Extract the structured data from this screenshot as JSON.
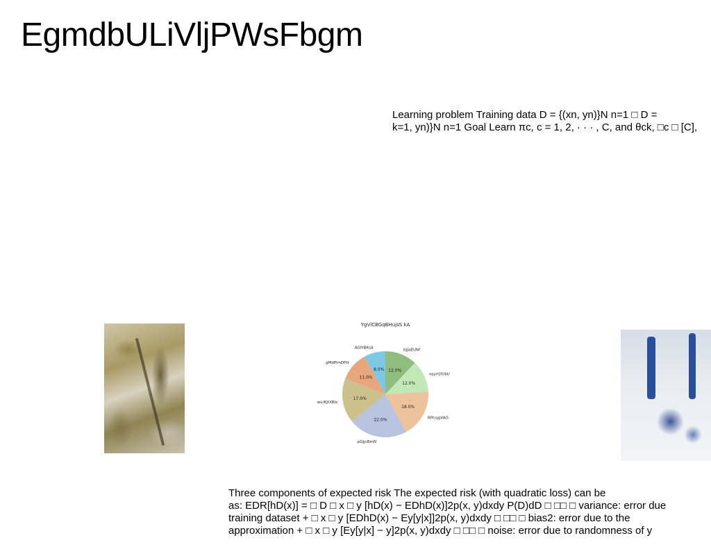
{
  "page": {
    "title": "EgmdbULiVljPWsFbgm"
  },
  "block1": {
    "lines": [
      "Learning problem Training data D = {(xn, yn)}N n=1 □ D =",
      "k=1, yn)}N n=1 Goal Learn πc, c = 1, 2, · · · , C, and θck, □c □ [C],"
    ]
  },
  "block2": {
    "lines": [
      "Three components of expected risk The expected risk (with quadratic loss) can be",
      "as: EDR[hD(x)] = □ D □ x □ y [hD(x) − EDhD(x)]2p(x, y)dxdy P(D)dD □ □□ □ variance: error due",
      "training dataset + □ x □ y [EDhD(x) − Ey[y|x]]2p(x, y)dxdy □ □□ □ bias2: error due to the",
      "approximation + □ x □ y [Ey[y|x] − y]2p(x, y)dxdy □ □□ □ noise: error due to randomness of y"
    ]
  },
  "chart_data": {
    "type": "pie",
    "title": "YgVlCBGqBHujsS kA",
    "start_angle_deg": 90,
    "direction": "clockwise",
    "slices": [
      {
        "label": "IsJJaEUNf",
        "value": 12.0,
        "display": "12.0%",
        "color": "#8fbc7f"
      },
      {
        "label": "vqyrGfUbU",
        "value": 12.0,
        "display": "12.0%",
        "color": "#c2e8b8"
      },
      {
        "label": "RPhsjgVAO",
        "value": 18.0,
        "display": "18.0%",
        "color": "#ecc39c"
      },
      {
        "label": "pGjjcBmN",
        "value": 22.0,
        "display": "22.0%",
        "color": "#b8c3e0"
      },
      {
        "label": "wLrKJtXBlx",
        "value": 17.0,
        "display": "17.0%",
        "color": "#ccc08c"
      },
      {
        "label": "gMdPimDPtr",
        "value": 11.0,
        "display": "11.0%",
        "color": "#e8a67c"
      },
      {
        "label": "AGIYBRsA",
        "value": 8.0,
        "display": "8.0%",
        "color": "#7ec8e3"
      }
    ]
  }
}
